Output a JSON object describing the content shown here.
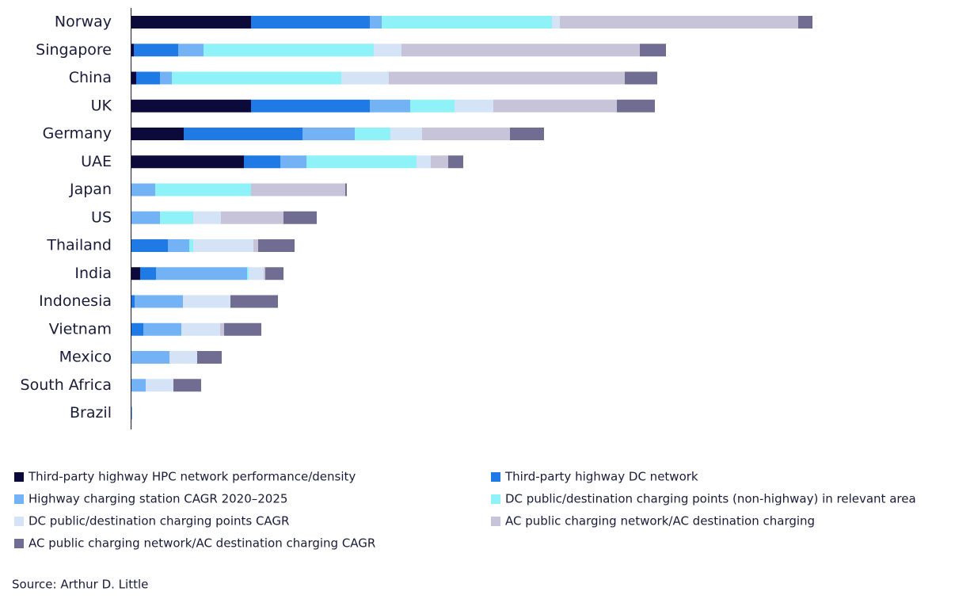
{
  "chart_data": {
    "type": "stacked-bar-horizontal",
    "categories": [
      "Norway",
      "Singapore",
      "China",
      "UK",
      "Germany",
      "UAE",
      "Japan",
      "US",
      "Thailand",
      "India",
      "Indonesia",
      "Vietnam",
      "Mexico",
      "South Africa",
      "Brazil"
    ],
    "series": [
      {
        "name": "Third-party highway HPC network performance/density",
        "color": "#0b0a3a",
        "values": [
          15.1,
          0.3,
          0.6,
          15.1,
          6.6,
          14.2,
          0,
          0,
          0,
          1.1,
          0,
          0,
          0,
          0,
          0
        ]
      },
      {
        "name": "Third-party highway DC network",
        "color": "#1f7ae6",
        "values": [
          15.0,
          5.6,
          3.0,
          15.0,
          15.0,
          4.6,
          0,
          0,
          4.6,
          2.0,
          0.4,
          1.5,
          0,
          0,
          0
        ]
      },
      {
        "name": "Highway charging station CAGR 2020–2025",
        "color": "#73b3f5",
        "values": [
          1.5,
          3.2,
          1.5,
          5.1,
          6.6,
          3.3,
          3.0,
          3.6,
          2.7,
          11.5,
          6.1,
          4.8,
          4.8,
          1.8,
          0.1
        ]
      },
      {
        "name": "DC public/destination charging points (non-highway) in relevant area",
        "color": "#8ef2f8",
        "values": [
          21.5,
          21.5,
          21.4,
          5.6,
          4.5,
          13.9,
          12.1,
          4.2,
          0.5,
          0.2,
          0,
          0,
          0,
          0,
          0
        ]
      },
      {
        "name": "DC public/destination charging points CAGR",
        "color": "#d5e3f7",
        "values": [
          1.0,
          3.5,
          6.0,
          4.9,
          4.0,
          1.8,
          0,
          3.5,
          7.6,
          1.9,
          6.0,
          4.9,
          3.5,
          3.5,
          0
        ]
      },
      {
        "name": "AC public charging network/AC destination charging",
        "color": "#c7c4d9",
        "values": [
          30.1,
          30.1,
          29.8,
          15.6,
          11.1,
          2.2,
          11.9,
          7.9,
          0.6,
          0.2,
          0,
          0.5,
          0,
          0,
          0
        ]
      },
      {
        "name": "AC public charging network/AC destination charging CAGR",
        "color": "#706c92",
        "values": [
          1.8,
          3.3,
          4.1,
          4.8,
          4.3,
          1.9,
          0.2,
          4.2,
          4.6,
          2.3,
          6.0,
          4.7,
          3.1,
          3.5,
          0
        ]
      }
    ],
    "source": "Source: Arthur D. Little"
  }
}
